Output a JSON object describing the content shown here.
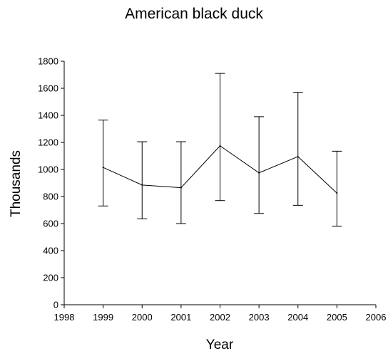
{
  "chart_data": {
    "type": "line",
    "title": "American black duck",
    "xlabel": "Year",
    "ylabel": "Thousands",
    "xlim": [
      1998,
      2006
    ],
    "ylim": [
      0,
      1800
    ],
    "x_ticks": [
      1998,
      1999,
      2000,
      2001,
      2002,
      2003,
      2004,
      2005,
      2006
    ],
    "y_ticks": [
      0,
      200,
      400,
      600,
      800,
      1000,
      1200,
      1400,
      1600,
      1800
    ],
    "grid": false,
    "legend": "none",
    "line_color": "#000000",
    "series": [
      {
        "x": [
          1999,
          2000,
          2001,
          2002,
          2003,
          2004,
          2005
        ],
        "y": [
          1015,
          885,
          865,
          1175,
          975,
          1095,
          825
        ],
        "error_low": [
          730,
          635,
          600,
          770,
          675,
          735,
          580
        ],
        "error_high": [
          1365,
          1205,
          1205,
          1710,
          1390,
          1570,
          1135
        ]
      }
    ]
  }
}
